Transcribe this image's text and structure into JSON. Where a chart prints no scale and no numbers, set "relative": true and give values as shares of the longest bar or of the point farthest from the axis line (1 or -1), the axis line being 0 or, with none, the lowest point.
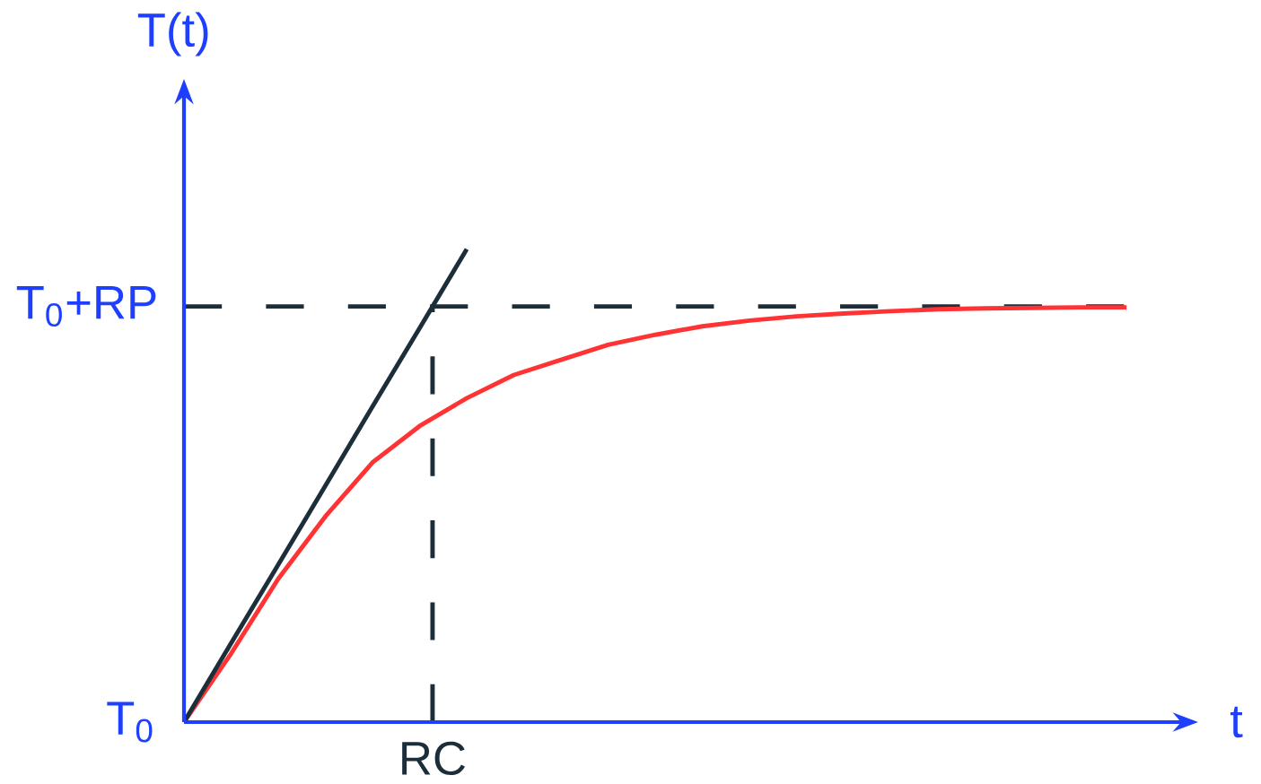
{
  "chart_data": {
    "type": "line",
    "xlabel": "t",
    "ylabel": "T(t)",
    "relative": true,
    "marker": "none",
    "categories": [
      null,
      null,
      null,
      null,
      null,
      null,
      null,
      null,
      null,
      null,
      null,
      null,
      null,
      null,
      null,
      null,
      null,
      null,
      null,
      null,
      null
    ],
    "annotations": [
      "T$_{0}$",
      "RC"
    ],
    "ref_lines": [
      {
        "axis": "y",
        "value": 0.879,
        "label": "T$_{0}$+RP",
        "color": "#1c2e3a",
        "line_style": "dashed"
      }
    ],
    "series": [
      {
        "color": "#ff3333",
        "values": [
          0,
          0.145,
          0.303,
          0.435,
          0.549,
          0.626,
          0.685,
          0.734,
          0.766,
          0.798,
          0.819,
          0.837,
          0.849,
          0.858,
          0.864,
          0.869,
          0.873,
          0.875,
          0.876,
          0.877,
          0.877
        ]
      },
      {
        "color": "#1c2e3a",
        "values": [
          0,
          0.167,
          0.333,
          0.5,
          0.667,
          0.833,
          1,
          null,
          null,
          null,
          null,
          null,
          null,
          null,
          null,
          null,
          null,
          null,
          null,
          null,
          null
        ]
      }
    ]
  }
}
